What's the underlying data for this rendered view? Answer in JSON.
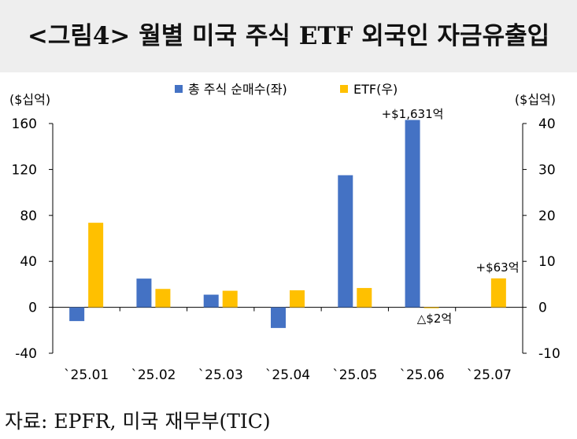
{
  "title": "<그림4> 월별 미국 주식 ETF 외국인 자금유출입",
  "source": "자료: EPFR, 미국 재무부(TIC)",
  "colors": {
    "total": "#4472C4",
    "etf": "#FFC000"
  },
  "chart_data": {
    "type": "bar",
    "categories": [
      "`25.01",
      "`25.02",
      "`25.03",
      "`25.04",
      "`25.05",
      "`25.06",
      "`25.07"
    ],
    "series": [
      {
        "name": "총 주식 순매수(좌)",
        "axis": "left",
        "values": [
          -12,
          25,
          11,
          -18,
          115,
          163.1,
          null
        ]
      },
      {
        "name": "ETF(우)",
        "axis": "right",
        "values": [
          18.4,
          4.0,
          3.6,
          3.7,
          4.2,
          -0.2,
          6.3
        ]
      }
    ],
    "left_axis": {
      "unit_label": "($십억)",
      "range": [
        -40,
        160
      ],
      "ticks": [
        -40,
        0,
        40,
        80,
        120,
        160
      ]
    },
    "right_axis": {
      "unit_label": "($십억)",
      "range": [
        -10,
        40
      ],
      "ticks": [
        -10,
        0,
        10,
        20,
        30,
        40
      ]
    },
    "annotations": [
      "+$1,631억",
      "△$2억",
      "+$63억"
    ],
    "legend_position": "top-center",
    "grid": false
  }
}
